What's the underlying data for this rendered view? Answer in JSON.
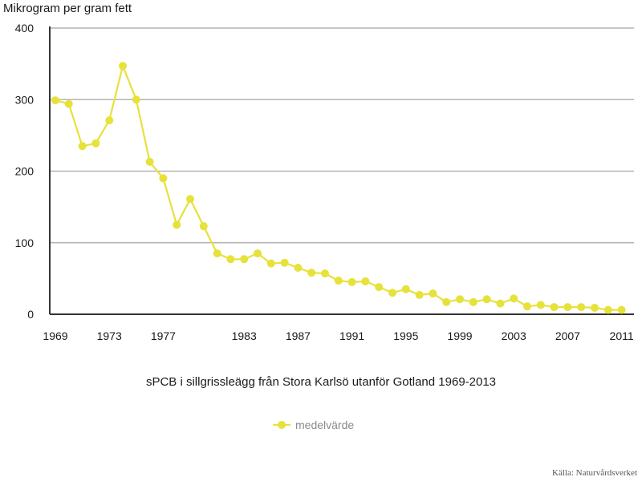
{
  "chart_data": {
    "type": "line",
    "title": "sPCB i sillgrissleägg från Stora Karlsö utanför Gotland 1969-2013",
    "ylabel": "Mikrogram per gram fett",
    "xlabel": "",
    "ylim": [
      0,
      400
    ],
    "yticks": [
      0,
      100,
      200,
      300,
      400
    ],
    "xticks": [
      1969,
      1973,
      1977,
      1983,
      1987,
      1991,
      1995,
      1999,
      2003,
      2007,
      2011
    ],
    "x_range": [
      1969,
      2013
    ],
    "grid": "horizontal",
    "legend_position": "bottom-center",
    "series": [
      {
        "name": "medelvärde",
        "color": "#e6e23a",
        "points": [
          [
            1969,
            299
          ],
          [
            1970,
            294
          ],
          [
            1971,
            235
          ],
          [
            1972,
            239
          ],
          [
            1973,
            271
          ],
          [
            1974,
            347
          ],
          [
            1975,
            300
          ],
          [
            1976,
            213
          ],
          [
            1977,
            190
          ],
          [
            1978,
            125
          ],
          [
            1979,
            161
          ],
          [
            1980,
            123
          ],
          [
            1981,
            85
          ],
          [
            1982,
            77
          ],
          [
            1983,
            77
          ],
          [
            1984,
            85
          ],
          [
            1985,
            71
          ],
          [
            1986,
            72
          ],
          [
            1987,
            65
          ],
          [
            1988,
            58
          ],
          [
            1989,
            57
          ],
          [
            1990,
            47
          ],
          [
            1991,
            45
          ],
          [
            1992,
            46
          ],
          [
            1993,
            38
          ],
          [
            1994,
            30
          ],
          [
            1995,
            35
          ],
          [
            1996,
            27
          ],
          [
            1997,
            29
          ],
          [
            1998,
            17
          ],
          [
            1999,
            21
          ],
          [
            2000,
            17
          ],
          [
            2001,
            21
          ],
          [
            2002,
            15
          ],
          [
            2003,
            22
          ],
          [
            2004,
            11
          ],
          [
            2005,
            13
          ],
          [
            2006,
            10
          ],
          [
            2007,
            10
          ],
          [
            2008,
            10
          ],
          [
            2009,
            9
          ],
          [
            2010,
            6
          ],
          [
            2011,
            6
          ]
        ]
      }
    ]
  },
  "source": "Källa: Naturvårdsverket"
}
